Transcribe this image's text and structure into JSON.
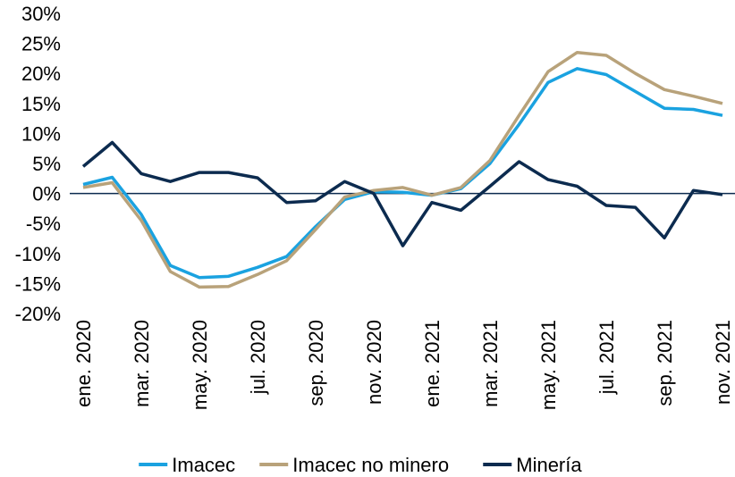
{
  "chart_data": {
    "type": "line",
    "categories": [
      "ene. 2020",
      null,
      "mar. 2020",
      null,
      "may. 2020",
      null,
      "jul. 2020",
      null,
      "sep. 2020",
      null,
      "nov. 2020",
      null,
      "ene. 2021",
      null,
      "mar. 2021",
      null,
      "may. 2021",
      null,
      "jul. 2021",
      null,
      "sep. 2021",
      null,
      "nov. 2021"
    ],
    "series": [
      {
        "name": "Imacec",
        "color": "#1aa2e0",
        "values": [
          1.5,
          2.7,
          -3.5,
          -12,
          -14,
          -13.8,
          -12.3,
          -10.5,
          -5.5,
          -1,
          0.3,
          0.2,
          -0.3,
          0.8,
          5,
          11.5,
          18.5,
          20.8,
          19.8,
          17,
          14.2,
          14,
          13
        ]
      },
      {
        "name": "Imacec no minero",
        "color": "#b8a27a",
        "values": [
          1,
          1.8,
          -4.5,
          -13,
          -15.6,
          -15.5,
          -13.5,
          -11.2,
          -6,
          -0.6,
          0.5,
          1,
          -0.3,
          1,
          5.5,
          13,
          20.3,
          23.5,
          23,
          20,
          17.3,
          16.2,
          15
        ]
      },
      {
        "name": "Minería",
        "color": "#0c2b4f",
        "values": [
          4.5,
          8.5,
          3.3,
          2,
          3.5,
          3.5,
          2.6,
          -1.5,
          -1.2,
          2,
          0,
          -8.7,
          -1.5,
          -2.8,
          1.2,
          5.3,
          2.3,
          1.2,
          -2,
          -2.3,
          -7.4,
          0.5,
          -0.2
        ]
      }
    ],
    "ylim": [
      -20,
      30
    ],
    "yticks": [
      {
        "value": -20,
        "label": "-20%"
      },
      {
        "value": -15,
        "label": "-15%"
      },
      {
        "value": -10,
        "label": "-10%"
      },
      {
        "value": -5,
        "label": "-5%"
      },
      {
        "value": 0,
        "label": "0%"
      },
      {
        "value": 5,
        "label": "5%"
      },
      {
        "value": 10,
        "label": "10%"
      },
      {
        "value": 15,
        "label": "15%"
      },
      {
        "value": 20,
        "label": "20%"
      },
      {
        "value": 25,
        "label": "25%"
      },
      {
        "value": 30,
        "label": "30%"
      }
    ],
    "legend": "bottom"
  }
}
